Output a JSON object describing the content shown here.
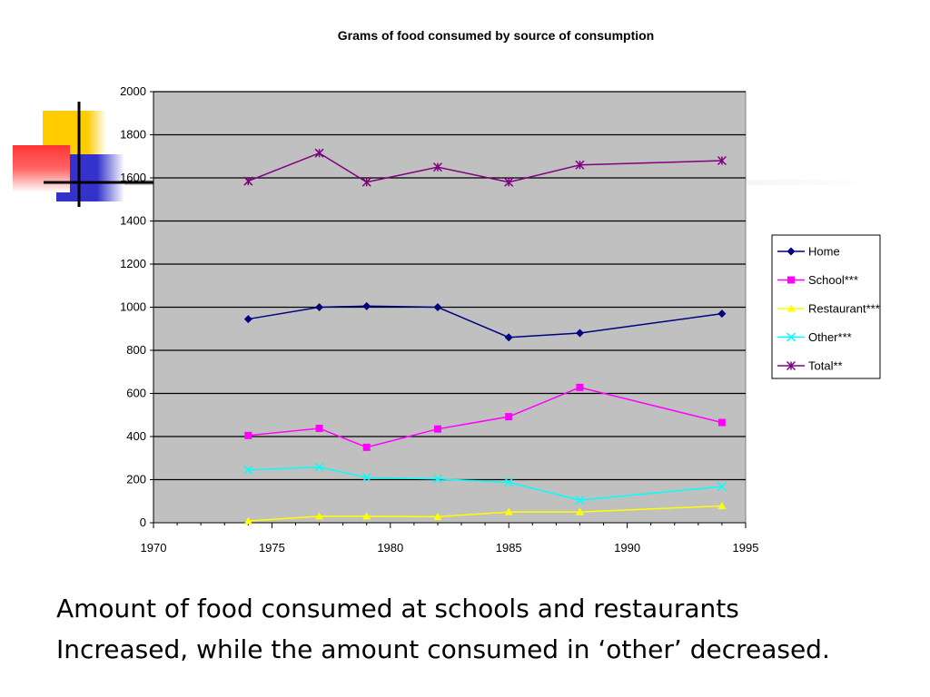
{
  "slide": {
    "caption_lines": [
      "Amount of food consumed at schools and restaurants",
      "Increased, while the amount consumed in ‘other’ decreased."
    ]
  },
  "colors": {
    "plot_background": "#c0c0c0",
    "gridline": "#000000",
    "home": "#000080",
    "school": "#ff00ff",
    "restaurant": "#ffff00",
    "other": "#00ffff",
    "total": "#800080",
    "deco_yellow": "#ffcc00",
    "deco_blue": "#3333cc",
    "deco_red": "#ff3333"
  },
  "chart_data": {
    "type": "line",
    "title": "Grams of food consumed by source of consumption",
    "xlabel": "",
    "ylabel": "",
    "xlim": [
      1970,
      1995
    ],
    "ylim": [
      0,
      2000
    ],
    "x_ticks": [
      1970,
      1975,
      1980,
      1985,
      1990,
      1995
    ],
    "y_ticks": [
      0,
      200,
      400,
      600,
      800,
      1000,
      1200,
      1400,
      1600,
      1800,
      2000
    ],
    "grid": "horizontal",
    "legend_position": "right",
    "x": [
      1974,
      1977,
      1979,
      1982,
      1985,
      1988,
      1994
    ],
    "series": [
      {
        "name": "Home",
        "marker": "diamond",
        "color": "#000080",
        "values": [
          945,
          1000,
          1005,
          1000,
          860,
          880,
          970
        ]
      },
      {
        "name": "School***",
        "marker": "square",
        "color": "#ff00ff",
        "values": [
          405,
          438,
          350,
          435,
          492,
          628,
          465
        ]
      },
      {
        "name": "Restaurant***",
        "marker": "triangle",
        "color": "#ffff00",
        "values": [
          8,
          30,
          30,
          28,
          50,
          50,
          78
        ]
      },
      {
        "name": "Other***",
        "marker": "x",
        "color": "#00ffff",
        "values": [
          245,
          258,
          210,
          203,
          188,
          105,
          168
        ]
      },
      {
        "name": "Total**",
        "marker": "star",
        "color": "#800080",
        "values": [
          1585,
          1715,
          1580,
          1650,
          1580,
          1660,
          1680
        ]
      }
    ]
  }
}
